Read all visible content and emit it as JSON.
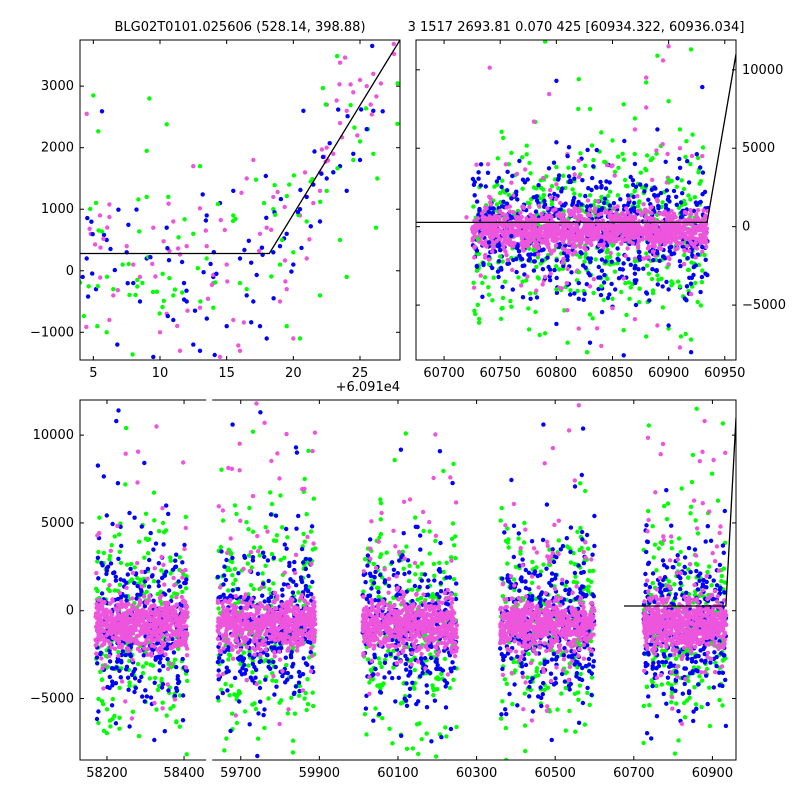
{
  "header": {
    "title_left": "BLG02T0101.025606 (528.14, 398.88)",
    "title_right": "3 1517 2693.81 0.070 425 [60934.322, 60936.034]"
  },
  "colors": {
    "green": "#00ff00",
    "blue": "#0000ff",
    "pink": "#ee55dd",
    "model": "#000000"
  },
  "chart_data": [
    {
      "type": "scatter",
      "panel": "zoom",
      "offset_label": "+6.091e4",
      "xlim": [
        4,
        28
      ],
      "ylim": [
        -1450,
        3750
      ],
      "xticks": [
        5,
        10,
        15,
        20,
        25
      ],
      "yticks": [
        -1000,
        0,
        1000,
        2000,
        3000
      ],
      "model_line": {
        "x": [
          4,
          18.2,
          28
        ],
        "y": [
          280,
          280,
          3750
        ]
      },
      "series": [
        {
          "color": "green",
          "points": [
            [
              5.0,
              2850
            ],
            [
              9.2,
              2800
            ],
            [
              10.5,
              2380
            ],
            [
              9.0,
              1950
            ],
            [
              13.0,
              1700
            ],
            [
              17.2,
              1480
            ],
            [
              21.3,
              1450
            ],
            [
              22.5,
              1300
            ],
            [
              23.0,
              1600
            ],
            [
              24.5,
              1800
            ],
            [
              25.0,
              2100
            ],
            [
              25.6,
              2300
            ],
            [
              26.0,
              1900
            ],
            [
              26.3,
              1500
            ],
            [
              6.5,
              -300
            ],
            [
              5.3,
              -900
            ],
            [
              6.0,
              -1000
            ],
            [
              11.0,
              -400
            ],
            [
              14.0,
              -600
            ],
            [
              16.5,
              -300
            ],
            [
              19.5,
              -900
            ],
            [
              20.5,
              -1100
            ],
            [
              22.0,
              -400
            ],
            [
              9.0,
              1200
            ],
            [
              12.5,
              600
            ],
            [
              15.5,
              900
            ],
            [
              18.5,
              1000
            ],
            [
              21.0,
              800
            ],
            [
              23.5,
              500
            ],
            [
              26.2,
              700
            ],
            [
              27.3,
              3800
            ],
            [
              7.2,
              100
            ],
            [
              8.3,
              -150
            ],
            [
              13.5,
              200
            ],
            [
              16.0,
              -200
            ],
            [
              19.0,
              100
            ],
            [
              20.0,
              300
            ],
            [
              24.0,
              -100
            ],
            [
              10.2,
              -50
            ],
            [
              17.8,
              1100
            ]
          ]
        },
        {
          "color": "blue",
          "points": [
            [
              4.5,
              200
            ],
            [
              5.2,
              -300
            ],
            [
              6.8,
              -1200
            ],
            [
              7.5,
              300
            ],
            [
              8.5,
              -500
            ],
            [
              9.5,
              -1400
            ],
            [
              10.5,
              700
            ],
            [
              11.8,
              -200
            ],
            [
              12.5,
              -1200
            ],
            [
              13.5,
              900
            ],
            [
              14.5,
              1100
            ],
            [
              15.5,
              1300
            ],
            [
              16.5,
              -400
            ],
            [
              17.5,
              -900
            ],
            [
              18.5,
              300
            ],
            [
              19.5,
              600
            ],
            [
              20.5,
              1000
            ],
            [
              21.5,
              1400
            ],
            [
              22.5,
              1500
            ],
            [
              23.5,
              1700
            ],
            [
              24.5,
              1900
            ],
            [
              25.5,
              2300
            ],
            [
              26.0,
              2600
            ],
            [
              4.2,
              -100
            ],
            [
              6.0,
              500
            ],
            [
              8.0,
              -200
            ],
            [
              9.0,
              200
            ],
            [
              11.0,
              -800
            ],
            [
              13.0,
              -1300
            ],
            [
              15.0,
              -900
            ],
            [
              17.0,
              -500
            ],
            [
              19.0,
              400
            ],
            [
              21.0,
              1200
            ],
            [
              23.0,
              1600
            ],
            [
              25.0,
              1800
            ],
            [
              12.0,
              -500
            ],
            [
              14.0,
              -100
            ],
            [
              16.0,
              200
            ],
            [
              18.0,
              -1100
            ],
            [
              20.0,
              100
            ],
            [
              22.0,
              800
            ],
            [
              24.0,
              1300
            ]
          ]
        },
        {
          "color": "pink",
          "points": [
            [
              4.5,
              2550
            ],
            [
              5.5,
              900
            ],
            [
              6.5,
              -400
            ],
            [
              7.5,
              400
            ],
            [
              8.5,
              -100
            ],
            [
              9.5,
              700
            ],
            [
              10.5,
              -700
            ],
            [
              11.5,
              -1300
            ],
            [
              12.5,
              1700
            ],
            [
              13.5,
              400
            ],
            [
              14.5,
              -1400
            ],
            [
              15.5,
              -800
            ],
            [
              16.5,
              1500
            ],
            [
              17.5,
              600
            ],
            [
              18.5,
              1200
            ],
            [
              19.5,
              -300
            ],
            [
              20.5,
              900
            ],
            [
              21.5,
              1100
            ],
            [
              22.5,
              2000
            ],
            [
              23.5,
              2400
            ],
            [
              24.5,
              2900
            ],
            [
              25.0,
              3100
            ],
            [
              25.5,
              3000
            ],
            [
              24.0,
              2600
            ],
            [
              4.8,
              600
            ],
            [
              6.2,
              -800
            ],
            [
              8.0,
              100
            ],
            [
              10.0,
              -1000
            ],
            [
              12.0,
              400
            ],
            [
              14.0,
              -200
            ],
            [
              16.0,
              -1300
            ],
            [
              17.0,
              1800
            ],
            [
              19.0,
              -500
            ],
            [
              20.0,
              -1100
            ],
            [
              22.0,
              1300
            ],
            [
              23.0,
              1900
            ],
            [
              24.8,
              2200
            ],
            [
              26.0,
              3200
            ],
            [
              11.0,
              800
            ],
            [
              13.0,
              -600
            ],
            [
              15.0,
              100
            ],
            [
              18.0,
              700
            ],
            [
              21.0,
              200
            ],
            [
              25.8,
              2700
            ]
          ]
        }
      ]
    },
    {
      "type": "scatter",
      "panel": "season",
      "xlim": [
        60675,
        60960
      ],
      "ylim": [
        -8500,
        11900
      ],
      "xticks": [
        60700,
        60750,
        60800,
        60850,
        60900,
        60950
      ],
      "yticks": [
        -5000,
        0,
        5000,
        10000
      ],
      "model_line": {
        "x": [
          60675,
          60934.3,
          60960
        ],
        "y": [
          270,
          270,
          11000
        ]
      },
      "series": [
        {
          "color": "green",
          "points": [
            [
              60790,
              11800
            ],
            [
              60920,
              11300
            ],
            [
              60890,
              10900
            ],
            [
              60820,
              9400
            ],
            [
              60880,
              9200
            ],
            [
              60900,
              8000
            ],
            [
              60860,
              7800
            ],
            [
              60830,
              7500
            ],
            [
              60870,
              6900
            ],
            [
              60910,
              6200
            ],
            [
              60840,
              6000
            ],
            [
              60850,
              5500
            ],
            [
              60760,
              4700
            ],
            [
              60800,
              3800
            ],
            [
              60880,
              3600
            ],
            [
              60900,
              3000
            ],
            [
              60780,
              2500
            ],
            [
              60830,
              2000
            ],
            [
              60740,
              -2400
            ],
            [
              60770,
              -3500
            ],
            [
              60800,
              -4000
            ],
            [
              60830,
              -5600
            ],
            [
              60860,
              -6600
            ],
            [
              60880,
              -7000
            ],
            [
              60900,
              -6500
            ],
            [
              60920,
              -7200
            ],
            [
              60790,
              -6800
            ],
            [
              60810,
              -7400
            ],
            [
              60850,
              -4600
            ],
            [
              60760,
              -5100
            ],
            [
              60910,
              -3800
            ],
            [
              60820,
              -2900
            ],
            [
              60750,
              -1900
            ],
            [
              60870,
              -2200
            ],
            [
              60890,
              -3100
            ],
            [
              60930,
              -2800
            ],
            [
              60730,
              -800
            ],
            [
              60850,
              -1200
            ],
            [
              60780,
              -1500
            ],
            [
              60840,
              -3800
            ]
          ]
        },
        {
          "color": "blue",
          "points": [
            [
              60800,
              9300
            ],
            [
              60930,
              8900
            ],
            [
              60890,
              6200
            ],
            [
              60810,
              4500
            ],
            [
              60870,
              4000
            ],
            [
              60840,
              2500
            ],
            [
              60760,
              1800
            ],
            [
              60900,
              1900
            ],
            [
              60740,
              -1000
            ],
            [
              60770,
              -2500
            ],
            [
              60790,
              -3300
            ],
            [
              60820,
              -4600
            ],
            [
              60850,
              -5100
            ],
            [
              60880,
              -4200
            ],
            [
              60900,
              -6300
            ],
            [
              60920,
              -8000
            ],
            [
              60860,
              -8200
            ],
            [
              60830,
              -7400
            ],
            [
              60800,
              -6200
            ],
            [
              60780,
              -2800
            ],
            [
              60750,
              -1500
            ],
            [
              60870,
              -3000
            ],
            [
              60910,
              -2200
            ],
            [
              60930,
              -1300
            ],
            [
              60810,
              -1900
            ],
            [
              60840,
              -900
            ],
            [
              60890,
              -1700
            ],
            [
              60760,
              -600
            ],
            [
              60820,
              -3600
            ],
            [
              60900,
              -4000
            ]
          ]
        },
        {
          "color": "pink",
          "points": [
            [
              60900,
              11500
            ],
            [
              60895,
              10600
            ],
            [
              60880,
              9500
            ],
            [
              60880,
              7600
            ],
            [
              60780,
              6700
            ],
            [
              60870,
              6200
            ],
            [
              60910,
              5000
            ],
            [
              60930,
              4500
            ],
            [
              60820,
              4200
            ],
            [
              60850,
              3900
            ],
            [
              60760,
              2800
            ],
            [
              60800,
              2700
            ],
            [
              60720,
              600
            ],
            [
              60740,
              -2100
            ],
            [
              60790,
              -3200
            ],
            [
              60830,
              -3800
            ],
            [
              60870,
              -5900
            ],
            [
              60890,
              -6300
            ],
            [
              60910,
              -7700
            ],
            [
              60850,
              -5200
            ],
            [
              60810,
              -2700
            ],
            [
              60770,
              -1400
            ],
            [
              60900,
              -2400
            ],
            [
              60930,
              -1600
            ],
            [
              60860,
              -3300
            ],
            [
              60820,
              -6500
            ],
            [
              60840,
              -7600
            ],
            [
              60880,
              -2000
            ],
            [
              60750,
              -800
            ],
            [
              60920,
              -4300
            ]
          ]
        }
      ]
    },
    {
      "type": "scatter",
      "panel": "all_seasons",
      "xlim": [
        58130,
        61150
      ],
      "ylim": [
        -8500,
        12000
      ],
      "xticks": [
        58200,
        58400,
        59700,
        59900,
        60100,
        60300,
        60500,
        60700,
        60900
      ],
      "yticks": [
        -5000,
        0,
        5000,
        10000
      ],
      "segments": [
        {
          "from": 58130,
          "to": 58455,
          "screen_start": 0.0
        },
        {
          "from": 59630,
          "to": 60960,
          "screen_start": 0.197
        }
      ],
      "model_line": {
        "x": [
          60675,
          60934.3,
          60960
        ],
        "y": [
          270,
          270,
          11000
        ]
      },
      "seasons": [
        [
          58170,
          58410
        ],
        [
          59640,
          59890
        ],
        [
          60010,
          60250
        ],
        [
          60360,
          60600
        ],
        [
          60725,
          60935
        ]
      ],
      "highlights": [
        {
          "color": "blue",
          "x": 58230,
          "y": 11400
        },
        {
          "color": "green",
          "x": 58250,
          "y": 10400
        },
        {
          "color": "blue",
          "x": 59750,
          "y": 11300
        },
        {
          "color": "pink",
          "x": 59740,
          "y": 11800
        },
        {
          "color": "green",
          "x": 60120,
          "y": 10100
        },
        {
          "color": "blue",
          "x": 60470,
          "y": 10600
        },
        {
          "color": "pink",
          "x": 60560,
          "y": 11700
        },
        {
          "color": "green",
          "x": 60860,
          "y": 11500
        },
        {
          "color": "pink",
          "x": 60880,
          "y": 10800
        }
      ]
    }
  ]
}
